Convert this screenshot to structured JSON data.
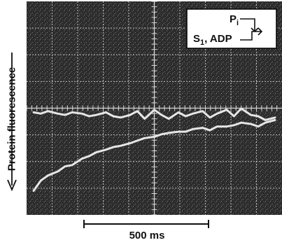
{
  "chart_data": {
    "type": "line",
    "ylabel": "Protein fluorescence",
    "scale_bar_label": "500 ms",
    "legend": {
      "line1": {
        "label": "P",
        "subscript": "i"
      },
      "line2": {
        "label": "S",
        "subscript": "1",
        "suffix": ", ADP"
      }
    },
    "grid": true,
    "xlim": [
      0,
      10
    ],
    "ylim": [
      0,
      8
    ],
    "series": [
      {
        "x": [
          0,
          0.3,
          0.6,
          1.0,
          1.3,
          1.6,
          2.0,
          2.3,
          2.6,
          3.0,
          3.3,
          3.6,
          4.0,
          4.3,
          4.6,
          5.0,
          5.3,
          5.6,
          6.0,
          6.3,
          6.6,
          7.0,
          7.3,
          7.6,
          8.0,
          8.3,
          8.6,
          9.0,
          9.3,
          9.6,
          10.0
        ],
        "y": [
          3.85,
          3.8,
          3.9,
          3.8,
          3.75,
          3.85,
          3.8,
          3.7,
          3.75,
          3.85,
          3.7,
          3.65,
          3.75,
          3.9,
          3.6,
          3.95,
          3.75,
          3.6,
          3.85,
          3.7,
          3.8,
          3.9,
          3.65,
          3.8,
          3.95,
          3.7,
          4.0,
          3.75,
          3.7,
          3.55,
          3.65
        ]
      },
      {
        "x": [
          0,
          0.3,
          0.6,
          1.0,
          1.3,
          1.6,
          2.0,
          2.3,
          2.6,
          3.0,
          3.3,
          3.6,
          4.0,
          4.3,
          4.6,
          5.0,
          5.3,
          5.6,
          6.0,
          6.3,
          6.6,
          7.0,
          7.3,
          7.6,
          8.0,
          8.3,
          8.6,
          9.0,
          9.3,
          9.6,
          10.0
        ],
        "y": [
          0.8,
          1.2,
          1.4,
          1.55,
          1.75,
          1.8,
          2.05,
          2.15,
          2.3,
          2.4,
          2.5,
          2.55,
          2.65,
          2.75,
          2.85,
          2.9,
          3.0,
          3.05,
          3.1,
          3.1,
          3.2,
          3.25,
          3.15,
          3.3,
          3.3,
          3.35,
          3.45,
          3.4,
          3.3,
          3.45,
          3.55
        ]
      }
    ]
  }
}
